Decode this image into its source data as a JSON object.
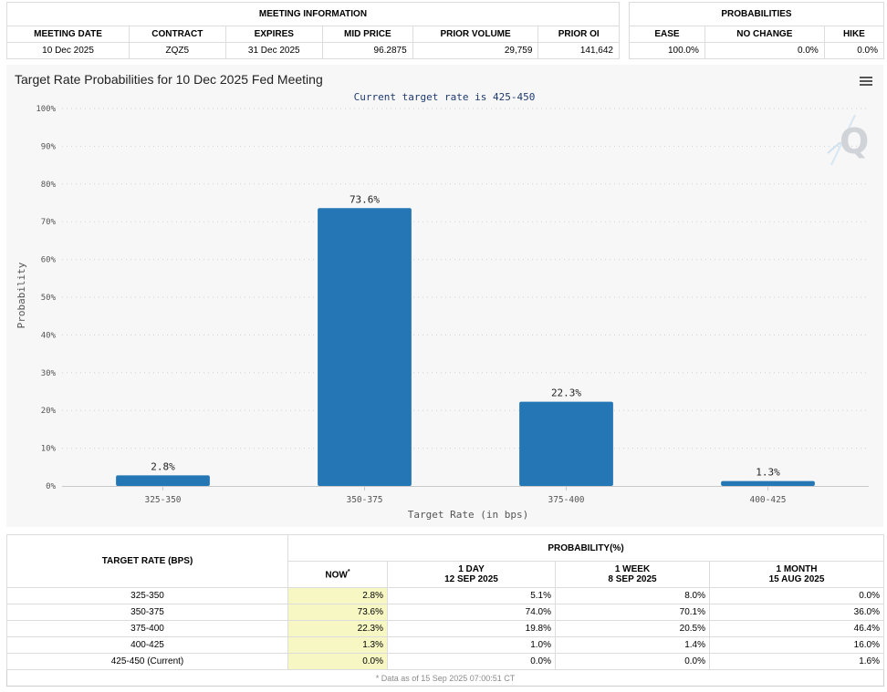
{
  "meeting_info": {
    "section_title": "MEETING INFORMATION",
    "headers": [
      "MEETING DATE",
      "CONTRACT",
      "EXPIRES",
      "MID PRICE",
      "PRIOR VOLUME",
      "PRIOR OI"
    ],
    "row": [
      "10 Dec 2025",
      "ZQZ5",
      "31 Dec 2025",
      "96.2875",
      "29,759",
      "141,642"
    ]
  },
  "probabilities": {
    "section_title": "PROBABILITIES",
    "headers": [
      "EASE",
      "NO CHANGE",
      "HIKE"
    ],
    "row": [
      "100.0%",
      "0.0%",
      "0.0%"
    ]
  },
  "chart_data": {
    "type": "bar",
    "title": "Target Rate Probabilities for 10 Dec 2025 Fed Meeting",
    "subtitle": "Current target rate is 425-450",
    "xlabel": "Target Rate (in bps)",
    "ylabel": "Probability",
    "categories": [
      "325-350",
      "350-375",
      "375-400",
      "400-425"
    ],
    "values": [
      2.8,
      73.6,
      22.3,
      1.3
    ],
    "data_labels": [
      "2.8%",
      "73.6%",
      "22.3%",
      "1.3%"
    ],
    "ylim": [
      0,
      100
    ],
    "yticks": [
      "0%",
      "10%",
      "20%",
      "30%",
      "40%",
      "50%",
      "60%",
      "70%",
      "80%",
      "90%",
      "100%"
    ],
    "grid": true,
    "bar_color": "#2476b4",
    "legend": "none"
  },
  "history_table": {
    "rate_header": "TARGET RATE (BPS)",
    "prob_header": "PROBABILITY(%)",
    "columns": [
      {
        "label": "NOW",
        "marker": "*",
        "date": ""
      },
      {
        "label": "1 DAY",
        "date": "12 SEP 2025"
      },
      {
        "label": "1 WEEK",
        "date": "8 SEP 2025"
      },
      {
        "label": "1 MONTH",
        "date": "15 AUG 2025"
      }
    ],
    "rows": [
      {
        "rate": "325-350",
        "values": [
          "2.8%",
          "5.1%",
          "8.0%",
          "0.0%"
        ]
      },
      {
        "rate": "350-375",
        "values": [
          "73.6%",
          "74.0%",
          "70.1%",
          "36.0%"
        ]
      },
      {
        "rate": "375-400",
        "values": [
          "22.3%",
          "19.8%",
          "20.5%",
          "46.4%"
        ]
      },
      {
        "rate": "400-425",
        "values": [
          "1.3%",
          "1.0%",
          "1.4%",
          "16.0%"
        ]
      },
      {
        "rate": "425-450 (Current)",
        "values": [
          "0.0%",
          "0.0%",
          "0.0%",
          "1.6%"
        ]
      }
    ],
    "footnote": "* Data as of 15 Sep 2025 07:00:51 CT"
  },
  "icons": {
    "menu": "hamburger-menu-icon",
    "watermark": "quikstrike-logo-icon"
  },
  "colors": {
    "bar": "#2476b4",
    "now_highlight": "#f7f7c4",
    "subtitle": "#1f3a6e",
    "chart_bg": "#f7f7f7"
  }
}
